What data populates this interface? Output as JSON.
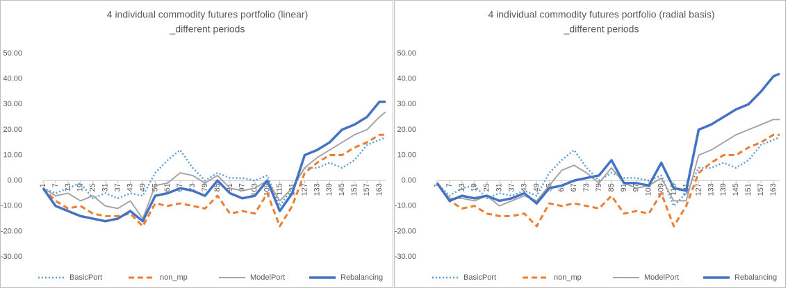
{
  "chart_data": [
    {
      "type": "line",
      "title": [
        "4 individual commodity futures portfolio (linear)",
        "_different periods"
      ],
      "x": [
        1,
        7,
        13,
        19,
        25,
        31,
        37,
        43,
        49,
        55,
        61,
        67,
        73,
        79,
        85,
        91,
        97,
        103,
        109,
        115,
        121,
        127,
        133,
        139,
        145,
        151,
        157,
        163,
        166
      ],
      "xlim": [
        1,
        166
      ],
      "xticks": [
        1,
        7,
        13,
        19,
        25,
        31,
        37,
        43,
        49,
        55,
        61,
        67,
        73,
        79,
        85,
        91,
        97,
        103,
        109,
        115,
        121,
        127,
        133,
        139,
        145,
        151,
        157,
        163
      ],
      "ylim": [
        -30,
        50
      ],
      "yticks": [
        {
          "value": -30,
          "label": "-30.00"
        },
        {
          "value": -20,
          "label": "-20.00"
        },
        {
          "value": -10,
          "label": "-10.00"
        },
        {
          "value": 0,
          "label": "0.00"
        },
        {
          "value": 10,
          "label": "10.00"
        },
        {
          "value": 20,
          "label": "20.00"
        },
        {
          "value": 30,
          "label": "30.00"
        },
        {
          "value": 40,
          "label": "40.00"
        },
        {
          "value": 50,
          "label": "50.00"
        }
      ],
      "grid": false,
      "legend": "bottom",
      "series": [
        {
          "name": "BasicPort",
          "color": "#5b9bd5",
          "style": "dotted",
          "values": [
            -3,
            -5,
            -3,
            -1,
            -7,
            -5,
            -7,
            -5,
            -6,
            3,
            8,
            12,
            5,
            0,
            3,
            1,
            1,
            0,
            2,
            -10,
            -3,
            5,
            5,
            7,
            5,
            8,
            14,
            16,
            17
          ]
        },
        {
          "name": "non_mp",
          "color": "#ed7d31",
          "style": "dashed",
          "values": [
            -3,
            -8,
            -11,
            -10,
            -13,
            -14,
            -14,
            -13,
            -18,
            -9,
            -10,
            -9,
            -10,
            -11,
            -6,
            -13,
            -12,
            -13,
            -5,
            -18,
            -10,
            3,
            7,
            10,
            10,
            13,
            15,
            18,
            18
          ]
        },
        {
          "name": "ModelPort",
          "color": "#a5a5a5",
          "style": "solid",
          "values": [
            -3,
            -6,
            -5,
            -8,
            -6,
            -10,
            -11,
            -8,
            -15,
            -2,
            -1,
            3,
            2,
            -1,
            2,
            -3,
            -4,
            -3,
            0,
            -8,
            -3,
            5,
            9,
            12,
            15,
            18,
            20,
            25,
            27
          ]
        },
        {
          "name": "Rebalancing",
          "color": "#4472c4",
          "style": "bold",
          "values": [
            -3,
            -10,
            -12,
            -14,
            -15,
            -16,
            -15,
            -12,
            -16,
            -6,
            -5,
            -3,
            -4,
            -6,
            0,
            -5,
            -7,
            -6,
            0,
            -12,
            -5,
            10,
            12,
            15,
            20,
            22,
            25,
            31,
            31
          ]
        }
      ]
    },
    {
      "type": "line",
      "title": [
        "4 individual commodity futures portfolio (radial basis)",
        "_different periods"
      ],
      "x": [
        1,
        7,
        13,
        19,
        25,
        31,
        37,
        43,
        49,
        55,
        61,
        67,
        73,
        79,
        85,
        91,
        97,
        103,
        109,
        115,
        121,
        127,
        133,
        139,
        145,
        151,
        157,
        163,
        166
      ],
      "xlim": [
        1,
        166
      ],
      "xticks": [
        1,
        7,
        13,
        19,
        25,
        31,
        37,
        43,
        49,
        55,
        61,
        67,
        73,
        79,
        85,
        91,
        97,
        103,
        109,
        115,
        121,
        127,
        133,
        139,
        145,
        151,
        157,
        163
      ],
      "ylim": [
        -30,
        50
      ],
      "yticks": [
        {
          "value": -30,
          "label": "-30.00"
        },
        {
          "value": -20,
          "label": "-20.00"
        },
        {
          "value": -10,
          "label": "-10.00"
        },
        {
          "value": 0,
          "label": "0.00"
        },
        {
          "value": 10,
          "label": "10.00"
        },
        {
          "value": 20,
          "label": "20.00"
        },
        {
          "value": 30,
          "label": "30.00"
        },
        {
          "value": 40,
          "label": "40.00"
        },
        {
          "value": 50,
          "label": "50.00"
        }
      ],
      "grid": false,
      "legend": "bottom",
      "series": [
        {
          "name": "BasicPort",
          "color": "#5b9bd5",
          "style": "dotted",
          "values": [
            -1,
            -6,
            -3,
            -2,
            -7,
            -5,
            -6,
            -4,
            -6,
            3,
            8,
            12,
            5,
            0,
            3,
            1,
            1,
            0,
            2,
            -10,
            -5,
            5,
            5,
            7,
            5,
            8,
            14,
            16,
            17
          ]
        },
        {
          "name": "non_mp",
          "color": "#ed7d31",
          "style": "dashed",
          "values": [
            -1,
            -8,
            -11,
            -10,
            -13,
            -14,
            -14,
            -13,
            -18,
            -9,
            -10,
            -9,
            -10,
            -11,
            -6,
            -13,
            -12,
            -13,
            -5,
            -18,
            -10,
            3,
            7,
            10,
            10,
            13,
            15,
            18,
            18
          ]
        },
        {
          "name": "ModelPort",
          "color": "#a5a5a5",
          "style": "solid",
          "values": [
            -1,
            -7,
            -7,
            -8,
            -6,
            -10,
            -8,
            -6,
            -8,
            -2,
            4,
            6,
            3,
            -1,
            5,
            -1,
            -3,
            -2,
            1,
            -8,
            -8,
            10,
            12,
            15,
            18,
            20,
            22,
            24,
            24
          ]
        },
        {
          "name": "Rebalancing",
          "color": "#4472c4",
          "style": "bold",
          "values": [
            -1,
            -8,
            -6,
            -7,
            -6,
            -8,
            -7,
            -5,
            -9,
            -3,
            -2,
            0,
            1,
            2,
            8,
            -1,
            -1,
            -2,
            7,
            -3,
            -4,
            20,
            22,
            25,
            28,
            30,
            35,
            41,
            42
          ]
        }
      ]
    }
  ]
}
